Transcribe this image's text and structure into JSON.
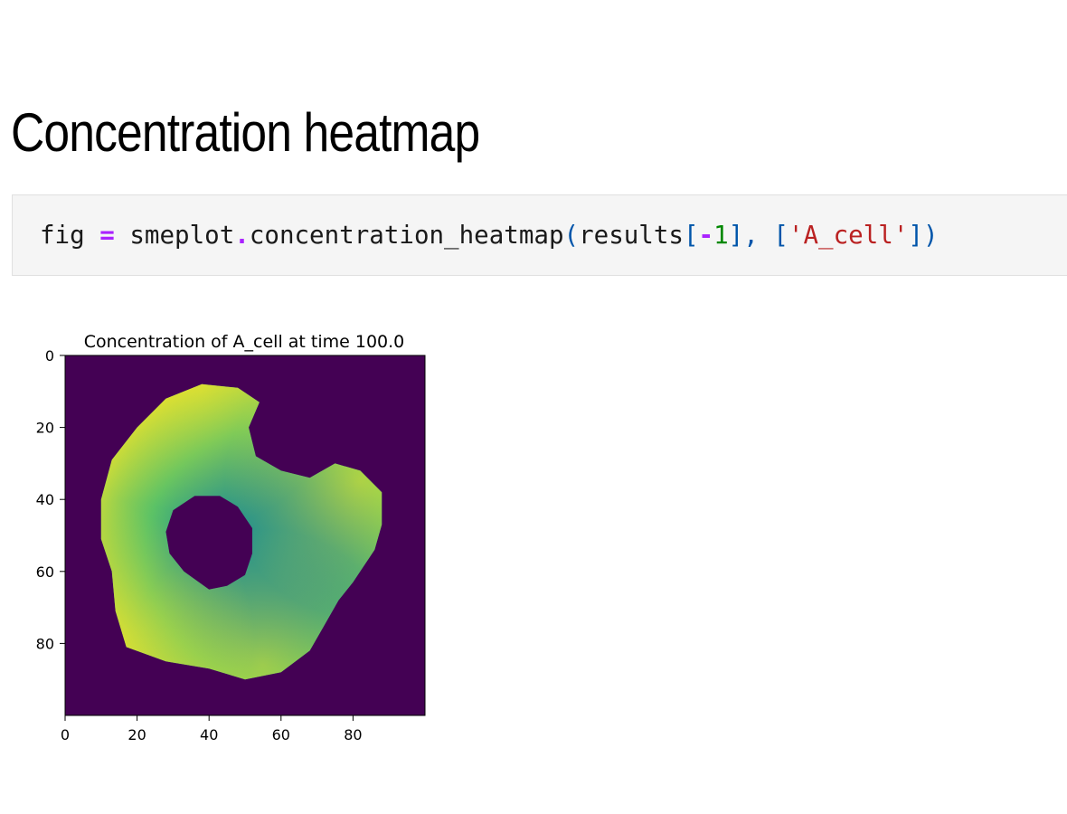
{
  "heading": "Concentration heatmap",
  "code": {
    "lhs": "fig",
    "assign": "=",
    "module": "smeplot",
    "dot": ".",
    "func": "concentration_heatmap",
    "paren_open": "(",
    "arg_name": "results",
    "idx_open": "[",
    "idx_minus": "-",
    "idx_num": "1",
    "idx_close": "]",
    "comma": ", ",
    "list_open": "[",
    "list_str": "'A_cell'",
    "list_close": "]",
    "paren_close": ")"
  },
  "colors": {
    "background_cell": "#440154",
    "colormap": [
      "#440154",
      "#21908d",
      "#5ec962",
      "#fde725"
    ]
  },
  "chart_data": {
    "type": "heatmap",
    "title": "Concentration of A_cell at time 100.0",
    "xlabel": "",
    "ylabel": "",
    "xlim": [
      0,
      100
    ],
    "ylim": [
      100,
      0
    ],
    "xticks": [
      "0",
      "20",
      "40",
      "60",
      "80"
    ],
    "yticks": [
      "0",
      "20",
      "40",
      "60",
      "80"
    ],
    "colormap": "viridis",
    "outer_boundary": [
      [
        38,
        8
      ],
      [
        48,
        9
      ],
      [
        54,
        13
      ],
      [
        51,
        20
      ],
      [
        53,
        28
      ],
      [
        60,
        32
      ],
      [
        68,
        34
      ],
      [
        75,
        30
      ],
      [
        82,
        32
      ],
      [
        88,
        38
      ],
      [
        88,
        47
      ],
      [
        86,
        54
      ],
      [
        80,
        63
      ],
      [
        76,
        68
      ],
      [
        72,
        75
      ],
      [
        68,
        82
      ],
      [
        60,
        88
      ],
      [
        50,
        90
      ],
      [
        40,
        87
      ],
      [
        28,
        85
      ],
      [
        17,
        81
      ],
      [
        14,
        71
      ],
      [
        13,
        60
      ],
      [
        10,
        51
      ],
      [
        10,
        40
      ],
      [
        13,
        29
      ],
      [
        20,
        20
      ],
      [
        28,
        12
      ]
    ],
    "inner_hole": [
      [
        36,
        39
      ],
      [
        43,
        39
      ],
      [
        48,
        42
      ],
      [
        52,
        48
      ],
      [
        52,
        55
      ],
      [
        50,
        61
      ],
      [
        45,
        64
      ],
      [
        40,
        65
      ],
      [
        33,
        60
      ],
      [
        29,
        55
      ],
      [
        28,
        49
      ],
      [
        30,
        43
      ]
    ],
    "hot_spots": [
      {
        "x": 82,
        "y": 35,
        "value": 1.0
      },
      {
        "x": 55,
        "y": 86,
        "value": 0.85
      },
      {
        "x": 15,
        "y": 78,
        "value": 0.95
      },
      {
        "x": 38,
        "y": 10,
        "value": 0.75
      }
    ],
    "cold_center": {
      "x": 57,
      "y": 55,
      "value": 0.25
    }
  }
}
